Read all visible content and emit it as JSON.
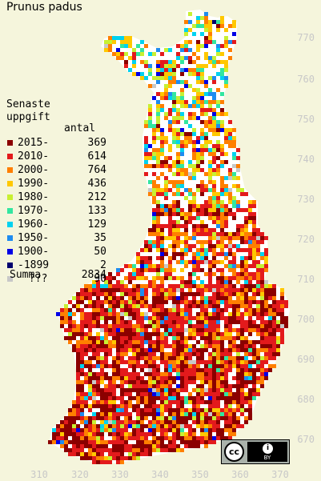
{
  "title": "Prunus padus",
  "legend": {
    "heading_line1": "Senaste",
    "heading_line2": "uppgift",
    "count_header": "antal",
    "items": [
      {
        "label": "2015-",
        "count": "369",
        "color": "#8b0000"
      },
      {
        "label": "2010-",
        "count": "614",
        "color": "#e31a1c"
      },
      {
        "label": "2000-",
        "count": "764",
        "color": "#ff7f00"
      },
      {
        "label": "1990-",
        "count": "436",
        "color": "#ffc800"
      },
      {
        "label": "1980-",
        "count": "212",
        "color": "#c8f032"
      },
      {
        "label": "1970-",
        "count": "133",
        "color": "#32e6a0"
      },
      {
        "label": "1960-",
        "count": "129",
        "color": "#00d2f0"
      },
      {
        "label": "1950-",
        "count": "35",
        "color": "#1e8cf0"
      },
      {
        "label": "1900-",
        "count": "50",
        "color": "#0000e6"
      },
      {
        "label": "-1899",
        "count": "2",
        "color": "#00006e"
      },
      {
        "label": "???",
        "count": "90",
        "color": "#c8c8c8"
      }
    ],
    "total_label": "Summa",
    "total_count": "2834"
  },
  "y_axis_labels": [
    "770",
    "760",
    "750",
    "740",
    "730",
    "720",
    "710",
    "700",
    "690",
    "680",
    "670"
  ],
  "x_axis_labels": [
    "310",
    "320",
    "330",
    "340",
    "350",
    "360",
    "370"
  ],
  "license": {
    "cc": "cc",
    "by_icon": "i",
    "by_text": "BY"
  },
  "colors": {
    "background": "#f5f5dc",
    "land": "#ffffff",
    "axis_label": "#c8c8c8"
  }
}
